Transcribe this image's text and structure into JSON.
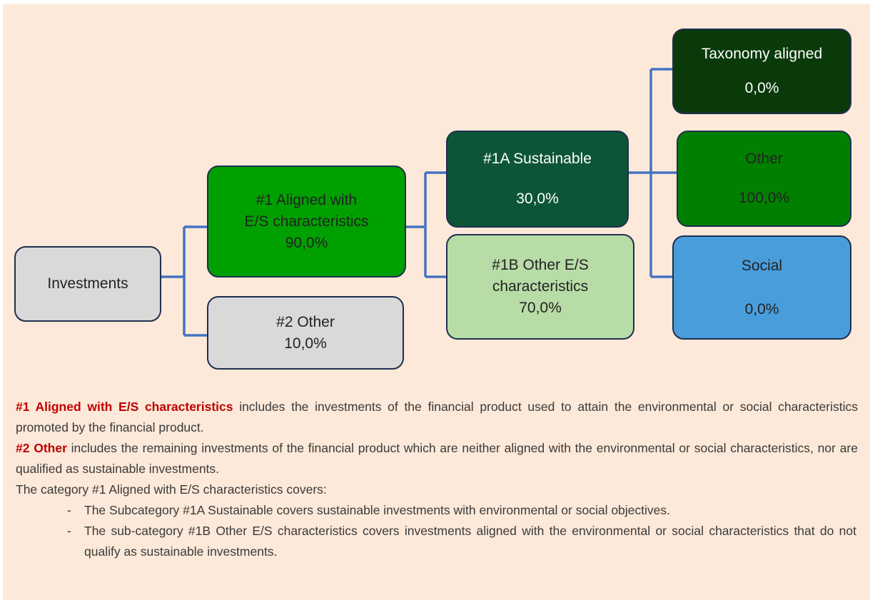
{
  "nodes": [
    {
      "lines": [
        "Investments"
      ]
    },
    {
      "lines": [
        "#1 Aligned with",
        "E/S characteristics"
      ],
      "value": "90,0%"
    },
    {
      "lines": [
        "#2 Other"
      ],
      "value": "10,0%"
    },
    {
      "lines": [
        "#1A Sustainable"
      ],
      "value": "30,0%"
    },
    {
      "lines": [
        "#1B Other E/S",
        "characteristics"
      ],
      "value": "70,0%"
    },
    {
      "lines": [
        "Taxonomy aligned"
      ],
      "value": "0,0%"
    },
    {
      "lines": [
        "Other"
      ],
      "value": "100,0%"
    },
    {
      "lines": [
        "Social"
      ],
      "value": "0,0%"
    }
  ],
  "text": {
    "p1": {
      "bold": "#1 Aligned with E/S characteristics",
      "rest": " includes the investments of the financial product used to attain the environmental or social characteristics promoted by the financial product."
    },
    "p2": {
      "bold": "#2 Other",
      "rest": " includes the remaining investments of the financial product which are neither aligned with the environmental or social characteristics, nor are qualified as sustainable investments."
    },
    "p3": "The category #1 Aligned with E/S characteristics covers:",
    "items": [
      {
        "dash": "-",
        "text": "The Subcategory #1A Sustainable covers sustainable investments with environmental or social objectives."
      },
      {
        "dash": "-",
        "text": "The sub-category #1B Other E/S characteristics covers investments aligned with the environmental or social characteristics that do not qualify as sustainable investments."
      }
    ]
  }
}
